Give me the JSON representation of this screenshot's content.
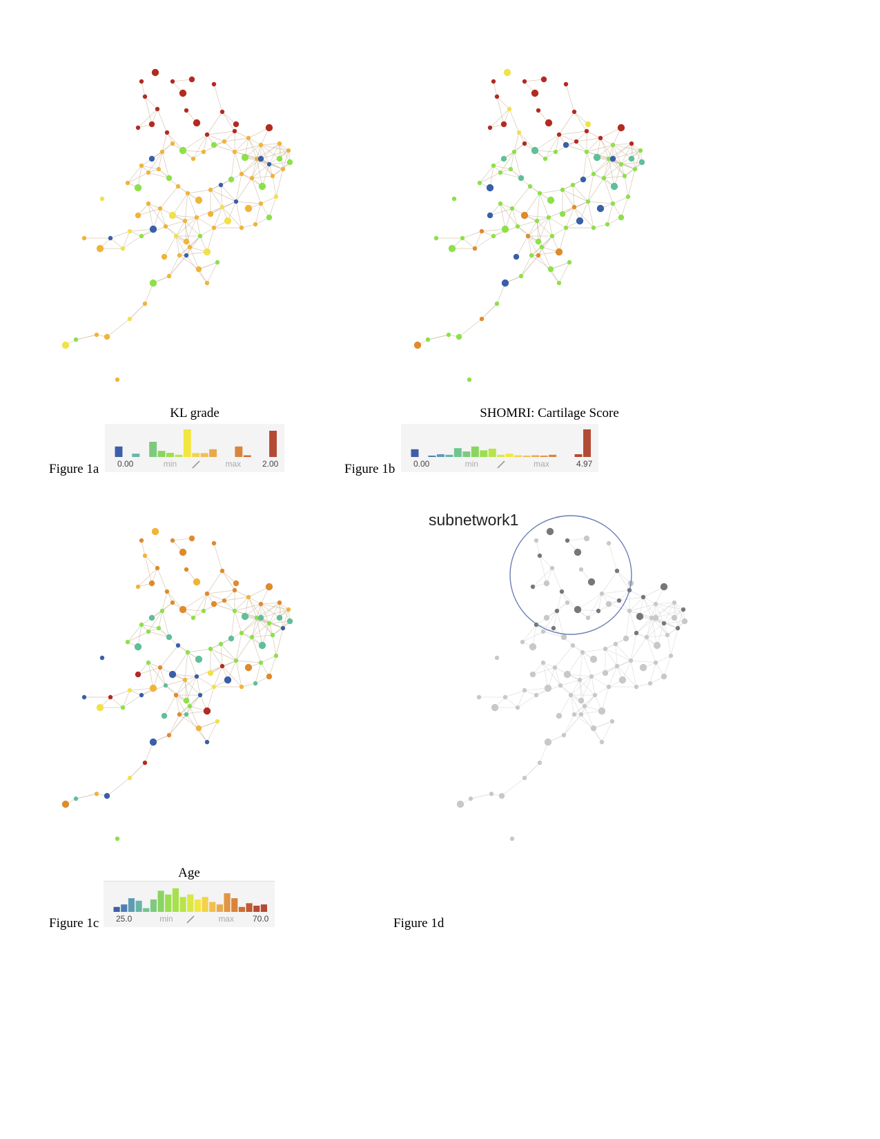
{
  "figures": {
    "a": {
      "caption": "Figure 1a",
      "legend": {
        "title": "KL grade",
        "min_value": "0.00",
        "max_value": "2.00",
        "min_label": "min",
        "max_label": "max",
        "bins": [
          {
            "h": 0.38,
            "c": "#3e5fa8"
          },
          {
            "h": 0,
            "c": "#3e5fa8"
          },
          {
            "h": 0.12,
            "c": "#67b5a8"
          },
          {
            "h": 0,
            "c": "#67b5a8"
          },
          {
            "h": 0.55,
            "c": "#7fc97f"
          },
          {
            "h": 0.22,
            "c": "#8ad462"
          },
          {
            "h": 0.15,
            "c": "#9cde4f"
          },
          {
            "h": 0.08,
            "c": "#b9e34a"
          },
          {
            "h": 1.0,
            "c": "#f2e641"
          },
          {
            "h": 0.14,
            "c": "#f2d24a"
          },
          {
            "h": 0.14,
            "c": "#eec050"
          },
          {
            "h": 0.28,
            "c": "#e8a94c"
          },
          {
            "h": 0,
            "c": "#e29544"
          },
          {
            "h": 0,
            "c": "#d9843c"
          },
          {
            "h": 0.38,
            "c": "#d9843c"
          },
          {
            "h": 0.06,
            "c": "#cc6b35"
          },
          {
            "h": 0,
            "c": "#c25b32"
          },
          {
            "h": 0,
            "c": "#b84a30"
          },
          {
            "h": 0.95,
            "c": "#b44a35"
          }
        ]
      }
    },
    "b": {
      "caption": "Figure 1b",
      "legend": {
        "title": "SHOMRI: Cartilage Score",
        "min_value": "0.00",
        "max_value": "4.97",
        "min_label": "min",
        "max_label": "max",
        "bins": [
          {
            "h": 0.28,
            "c": "#3e5fa8"
          },
          {
            "h": 0,
            "c": "#3e5fa8"
          },
          {
            "h": 0.05,
            "c": "#4f7db3"
          },
          {
            "h": 0.1,
            "c": "#5d9bb5"
          },
          {
            "h": 0.08,
            "c": "#67b5a8"
          },
          {
            "h": 0.32,
            "c": "#6fc58f"
          },
          {
            "h": 0.2,
            "c": "#7fc97f"
          },
          {
            "h": 0.38,
            "c": "#8ad462"
          },
          {
            "h": 0.24,
            "c": "#9cde4f"
          },
          {
            "h": 0.3,
            "c": "#b9e34a"
          },
          {
            "h": 0.08,
            "c": "#d8e845"
          },
          {
            "h": 0.12,
            "c": "#f2e641"
          },
          {
            "h": 0.06,
            "c": "#f2d24a"
          },
          {
            "h": 0.05,
            "c": "#eec050"
          },
          {
            "h": 0.06,
            "c": "#e8a94c"
          },
          {
            "h": 0.05,
            "c": "#e29544"
          },
          {
            "h": 0.08,
            "c": "#d9843c"
          },
          {
            "h": 0,
            "c": "#cc6b35"
          },
          {
            "h": 0,
            "c": "#c25b32"
          },
          {
            "h": 0.1,
            "c": "#b84a30"
          },
          {
            "h": 1.0,
            "c": "#b44a35"
          }
        ]
      }
    },
    "c": {
      "caption": "Figure 1c",
      "legend": {
        "title": "Age",
        "min_value": "25.0",
        "max_value": "70.0",
        "min_label": "min",
        "max_label": "max",
        "bins": [
          {
            "h": 0.2,
            "c": "#3e5fa8"
          },
          {
            "h": 0.3,
            "c": "#4f7db3"
          },
          {
            "h": 0.55,
            "c": "#5d9bb5"
          },
          {
            "h": 0.45,
            "c": "#67b5a8"
          },
          {
            "h": 0.15,
            "c": "#6fc58f"
          },
          {
            "h": 0.5,
            "c": "#7fc97f"
          },
          {
            "h": 0.85,
            "c": "#8ad462"
          },
          {
            "h": 0.7,
            "c": "#9cde4f"
          },
          {
            "h": 0.95,
            "c": "#a7e04d"
          },
          {
            "h": 0.6,
            "c": "#b9e34a"
          },
          {
            "h": 0.7,
            "c": "#d8e845"
          },
          {
            "h": 0.5,
            "c": "#f2e641"
          },
          {
            "h": 0.6,
            "c": "#f2d24a"
          },
          {
            "h": 0.4,
            "c": "#eec050"
          },
          {
            "h": 0.3,
            "c": "#e8a94c"
          },
          {
            "h": 0.75,
            "c": "#e29544"
          },
          {
            "h": 0.55,
            "c": "#d9843c"
          },
          {
            "h": 0.2,
            "c": "#cc6b35"
          },
          {
            "h": 0.35,
            "c": "#c25b32"
          },
          {
            "h": 0.25,
            "c": "#b84a30"
          },
          {
            "h": 0.3,
            "c": "#b44a35"
          }
        ]
      }
    },
    "d": {
      "caption": "Figure 1d",
      "subnetwork_label": "subnetwork1"
    }
  },
  "colors": {
    "red": "#b22b22",
    "orange": "#e08a2c",
    "gold": "#f0b43a",
    "yellow": "#f1e14a",
    "green": "#8de04a",
    "teal": "#5fbf9a",
    "blue": "#3a5fa8",
    "edge": "#c9b49a",
    "gray_dark": "#777777",
    "gray_light": "#c8c8c8",
    "circle": "#6b7fb5"
  }
}
